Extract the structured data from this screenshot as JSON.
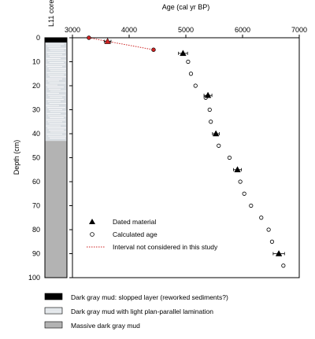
{
  "chart_data": {
    "type": "scatter",
    "title": "",
    "xlabel": "Age (cal yr BP)",
    "ylabel": "Depth (cm)",
    "core_label": "L11 core",
    "x_range": [
      3000,
      7000
    ],
    "y_range": [
      0,
      100
    ],
    "y_inverted": true,
    "x_axis_position": "top",
    "x_ticks": [
      3000,
      4000,
      5000,
      6000,
      7000
    ],
    "y_ticks": [
      0,
      10,
      20,
      30,
      40,
      50,
      60,
      70,
      80,
      90,
      100
    ],
    "grid": false,
    "legend_position": "bottom-left",
    "series": [
      {
        "name": "Dated material",
        "marker": "triangle",
        "color": "#000000",
        "points": [
          {
            "x": 3620,
            "y": 1.5,
            "xerr": 60,
            "color": "#cc2222"
          },
          {
            "x": 4950,
            "y": 6.5,
            "xerr": 80
          },
          {
            "x": 5390,
            "y": 24,
            "xerr": 70
          },
          {
            "x": 5530,
            "y": 40,
            "xerr": 60
          },
          {
            "x": 5910,
            "y": 55,
            "xerr": 70
          },
          {
            "x": 6640,
            "y": 90,
            "xerr": 100
          }
        ]
      },
      {
        "name": "Calculated age",
        "marker": "circle",
        "color": "#000000",
        "points": [
          {
            "x": 5040,
            "y": 10
          },
          {
            "x": 5090,
            "y": 15
          },
          {
            "x": 5170,
            "y": 20
          },
          {
            "x": 5350,
            "y": 25
          },
          {
            "x": 5420,
            "y": 30
          },
          {
            "x": 5440,
            "y": 35
          },
          {
            "x": 5580,
            "y": 45
          },
          {
            "x": 5770,
            "y": 50
          },
          {
            "x": 5960,
            "y": 60
          },
          {
            "x": 6030,
            "y": 65
          },
          {
            "x": 6150,
            "y": 70
          },
          {
            "x": 6330,
            "y": 75
          },
          {
            "x": 6460,
            "y": 80
          },
          {
            "x": 6520,
            "y": 85
          },
          {
            "x": 6720,
            "y": 95
          }
        ]
      },
      {
        "name": "Interval not considered in this study",
        "style": "dotted-line",
        "color": "#cc2222",
        "points": [
          {
            "x": 3290,
            "y": 0
          },
          {
            "x": 3620,
            "y": 1.5
          },
          {
            "x": 4430,
            "y": 5
          }
        ]
      }
    ],
    "lithology": {
      "units": [
        {
          "key": "stippled",
          "label": "Dark gray mud: slopped layer (reworked sediments?)",
          "color": "#000000",
          "from": 0,
          "to": 2
        },
        {
          "key": "laminated",
          "label": "Dark gray mud with light plan-parallel lamination",
          "color": "#d8dde2",
          "from": 2,
          "to": 43
        },
        {
          "key": "massive",
          "label": "Massive dark gray mud",
          "color": "#b3b3b3",
          "from": 43,
          "to": 100
        }
      ]
    },
    "colors": {
      "red": "#cc2222",
      "black": "#000000",
      "laminated_bg": "#d8dde2",
      "massive_bg": "#b3b3b3"
    }
  }
}
